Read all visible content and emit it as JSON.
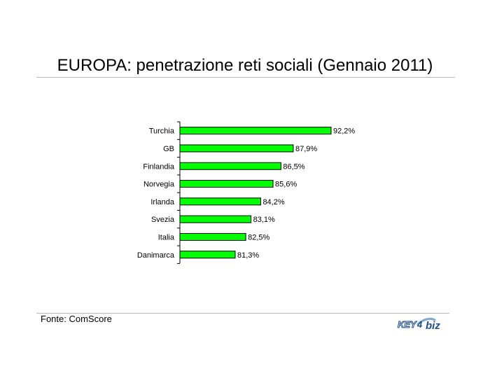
{
  "header": {
    "title": "EUROPA: penetrazione reti sociali (Gennaio 2011)"
  },
  "footer": {
    "source": "Fonte: ComScore",
    "logo_text": "KEY4biz"
  },
  "colors": {
    "bar": "#00ff00",
    "bar_stroke": "#000000",
    "rule": "#b8b8b8"
  },
  "chart_data": {
    "type": "bar",
    "orientation": "horizontal",
    "title": "EUROPA: penetrazione reti sociali (Gennaio 2011)",
    "categories": [
      "Turchia",
      "GB",
      "Finlandia",
      "Norvegia",
      "Irlanda",
      "Svezia",
      "Italia",
      "Danimarca"
    ],
    "values": [
      92.2,
      87.9,
      86.5,
      85.6,
      84.2,
      83.1,
      82.5,
      81.3
    ],
    "value_labels": [
      "92,2%",
      "87,9%",
      "86,5%",
      "85,6%",
      "84,2%",
      "83,1%",
      "82,5%",
      "81,3%"
    ],
    "xlim": [
      75,
      93
    ],
    "grid": false,
    "legend": "none"
  }
}
